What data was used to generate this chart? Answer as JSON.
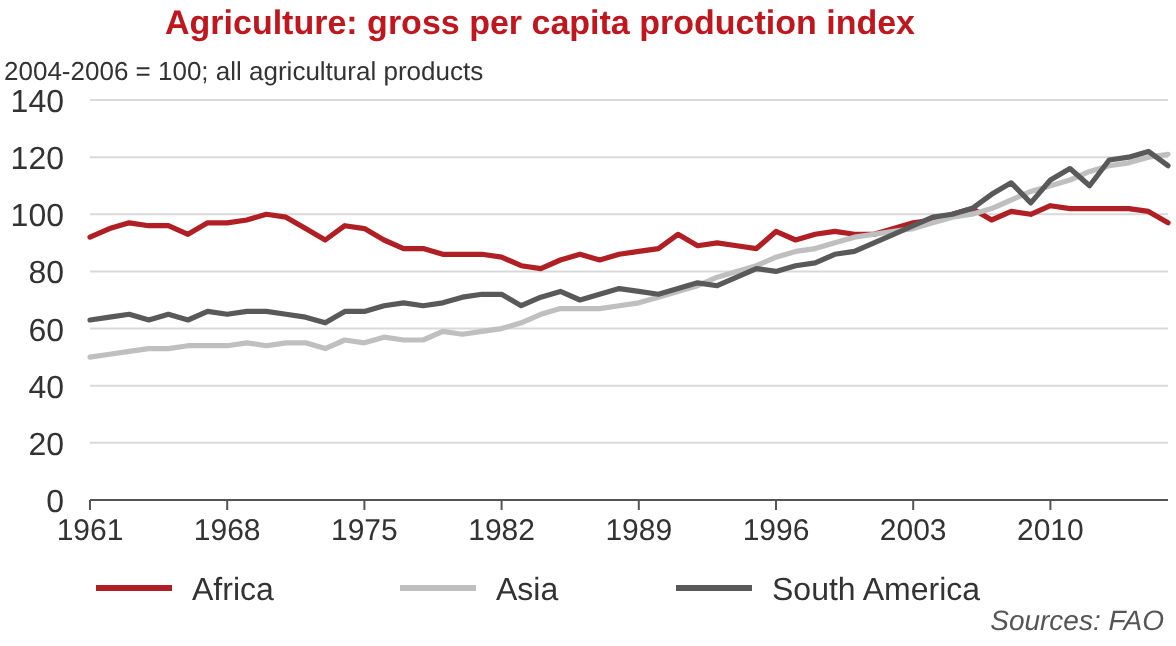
{
  "chart_data": {
    "type": "line",
    "title": "Agriculture: gross per capita production index",
    "subtitle": "2004-2006 = 100; all agricultural products",
    "x": [
      1961,
      1962,
      1963,
      1964,
      1965,
      1966,
      1967,
      1968,
      1969,
      1970,
      1971,
      1972,
      1973,
      1974,
      1975,
      1976,
      1977,
      1978,
      1979,
      1980,
      1981,
      1982,
      1983,
      1984,
      1985,
      1986,
      1987,
      1988,
      1989,
      1990,
      1991,
      1992,
      1993,
      1994,
      1995,
      1996,
      1997,
      1998,
      1999,
      2000,
      2001,
      2002,
      2003,
      2004,
      2005,
      2006,
      2007,
      2008,
      2009,
      2010,
      2011,
      2012,
      2013,
      2014,
      2015,
      2016
    ],
    "series": [
      {
        "name": "Africa",
        "color": "#b01f24",
        "values": [
          92,
          95,
          97,
          96,
          96,
          93,
          97,
          97,
          98,
          100,
          99,
          95,
          91,
          96,
          95,
          91,
          88,
          88,
          86,
          86,
          86,
          85,
          82,
          81,
          84,
          86,
          84,
          86,
          87,
          88,
          93,
          89,
          90,
          89,
          88,
          94,
          91,
          93,
          94,
          93,
          93,
          95,
          97,
          98,
          100,
          102,
          98,
          101,
          100,
          103,
          102,
          102,
          102,
          102,
          101,
          97
        ]
      },
      {
        "name": "Asia",
        "color": "#bfbfbf",
        "values": [
          50,
          51,
          52,
          53,
          53,
          54,
          54,
          54,
          55,
          54,
          55,
          55,
          53,
          56,
          55,
          57,
          56,
          56,
          59,
          58,
          59,
          60,
          62,
          65,
          67,
          67,
          67,
          68,
          69,
          71,
          73,
          75,
          78,
          80,
          82,
          85,
          87,
          88,
          90,
          92,
          93,
          94,
          95,
          97,
          99,
          100,
          102,
          105,
          108,
          110,
          112,
          115,
          117,
          118,
          120,
          121
        ]
      },
      {
        "name": "South America",
        "color": "#595959",
        "values": [
          63,
          64,
          65,
          63,
          65,
          63,
          66,
          65,
          66,
          66,
          65,
          64,
          62,
          66,
          66,
          68,
          69,
          68,
          69,
          71,
          72,
          72,
          68,
          71,
          73,
          70,
          72,
          74,
          73,
          72,
          74,
          76,
          75,
          78,
          81,
          80,
          82,
          83,
          86,
          87,
          90,
          93,
          96,
          99,
          100,
          102,
          107,
          111,
          104,
          112,
          116,
          110,
          119,
          120,
          122,
          117
        ]
      }
    ],
    "xlim": [
      1961,
      2016
    ],
    "xticks": [
      1961,
      1968,
      1975,
      1982,
      1989,
      1996,
      2003,
      2010
    ],
    "ylim": [
      0,
      140
    ],
    "yticks": [
      0,
      20,
      40,
      60,
      80,
      100,
      120,
      140
    ],
    "grid": "y",
    "legend": "bottom",
    "line_style": "solid",
    "marker": "none",
    "annotations": [
      "Sources: FAO"
    ]
  }
}
